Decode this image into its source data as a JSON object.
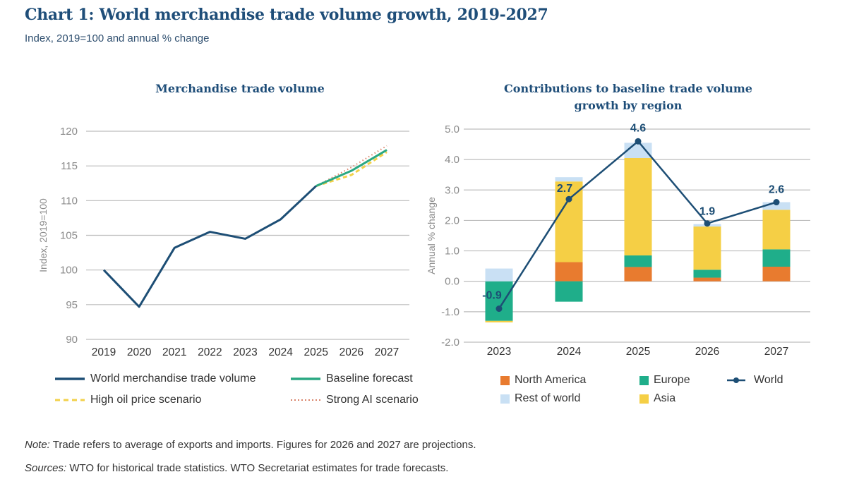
{
  "header": {
    "title": "Chart 1: World merchandise trade volume growth, 2019-2027",
    "subtitle": "Index, 2019=100 and annual % change"
  },
  "chart_data": [
    {
      "type": "line",
      "title": "Merchandise trade volume",
      "xlabel": "",
      "ylabel": "Index, 2019=100",
      "x": [
        "2019",
        "2020",
        "2021",
        "2022",
        "2023",
        "2024",
        "2025",
        "2026",
        "2027"
      ],
      "ylim": [
        90,
        120
      ],
      "yticks": [
        "90",
        "95",
        "100",
        "105",
        "110",
        "115",
        "120"
      ],
      "grid": true,
      "legend_position": "bottom",
      "series": [
        {
          "name": "World merchandise trade volume",
          "color": "#1d4e75",
          "style": "solid",
          "values": [
            100.0,
            94.7,
            103.2,
            105.5,
            104.5,
            107.3,
            112.1,
            null,
            null
          ]
        },
        {
          "name": "Baseline forecast",
          "color": "#2aa882",
          "style": "solid",
          "values": [
            null,
            null,
            null,
            null,
            null,
            null,
            112.1,
            114.3,
            117.3
          ]
        },
        {
          "name": "High oil price scenario",
          "color": "#f2d14a",
          "style": "dashed",
          "values": [
            null,
            null,
            null,
            null,
            null,
            null,
            112.1,
            113.7,
            117.0
          ]
        },
        {
          "name": "Strong AI scenario",
          "color": "#d9836a",
          "style": "dotted",
          "values": [
            null,
            null,
            null,
            null,
            null,
            null,
            112.1,
            114.8,
            117.9
          ]
        }
      ]
    },
    {
      "type": "bar",
      "stacked": true,
      "title": "Contributions to baseline trade volume growth by region",
      "title_lines": [
        "Contributions to baseline trade volume",
        "growth by region"
      ],
      "xlabel": "",
      "ylabel": "Annual % change",
      "categories": [
        "2023",
        "2024",
        "2025",
        "2026",
        "2027"
      ],
      "ylim": [
        -2.0,
        5.0
      ],
      "yticks": [
        "-2.0",
        "-1.0",
        "0.0",
        "1.0",
        "2.0",
        "3.0",
        "4.0",
        "5.0"
      ],
      "grid": true,
      "legend_position": "bottom",
      "series": [
        {
          "name": "North America",
          "color": "#e87b2f",
          "values": [
            0.0,
            0.63,
            0.47,
            0.12,
            0.48
          ]
        },
        {
          "name": "Europe",
          "color": "#1fae8a",
          "values": [
            -1.3,
            -0.67,
            0.38,
            0.26,
            0.57
          ]
        },
        {
          "name": "Asia",
          "color": "#f5cf45",
          "values": [
            -0.05,
            2.65,
            3.2,
            1.42,
            1.3
          ]
        },
        {
          "name": "Rest of world",
          "color": "#c9e0f4",
          "values": [
            0.42,
            0.14,
            0.5,
            0.08,
            0.25
          ]
        }
      ],
      "line_series": {
        "name": "World",
        "color": "#1d4e75",
        "values": [
          -0.9,
          2.7,
          4.6,
          1.9,
          2.6
        ],
        "labels": [
          "-0.9",
          "2.7",
          "4.6",
          "1.9",
          "2.6"
        ]
      }
    }
  ],
  "legend_left": [
    {
      "label": "World merchandise trade volume",
      "symbol": "solid",
      "color": "#1d4e75"
    },
    {
      "label": "Baseline forecast",
      "symbol": "solid",
      "color": "#2aa882"
    },
    {
      "label": "High oil price scenario",
      "symbol": "dashed",
      "color": "#f2d14a"
    },
    {
      "label": "Strong AI scenario",
      "symbol": "dotted",
      "color": "#d9836a"
    }
  ],
  "legend_right": [
    {
      "label": "North America",
      "symbol": "square",
      "color": "#e87b2f"
    },
    {
      "label": "Europe",
      "symbol": "square",
      "color": "#1fae8a"
    },
    {
      "label": "World",
      "symbol": "line-marker",
      "color": "#1d4e75"
    },
    {
      "label": "Rest of world",
      "symbol": "square",
      "color": "#c9e0f4"
    },
    {
      "label": "Asia",
      "symbol": "square",
      "color": "#f5cf45"
    }
  ],
  "footer": {
    "note_label": "Note:",
    "note_text": " Trade refers to average of exports and imports. Figures for 2026 and 2027 are projections.",
    "sources_label": "Sources:",
    "sources_text": " WTO for historical trade statistics. WTO Secretariat estimates for trade forecasts."
  }
}
